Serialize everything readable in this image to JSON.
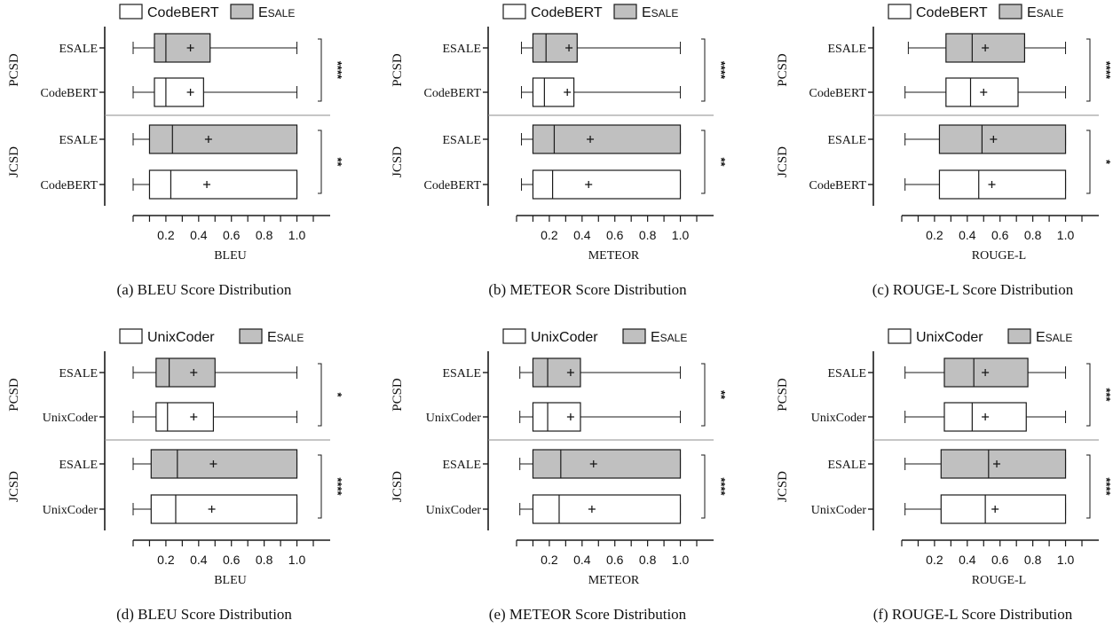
{
  "colors": {
    "baseline_fill": "#ffffff",
    "esale_fill": "#c0c0c0",
    "stroke": "#1a1a1a",
    "divider": "#8c8c8c"
  },
  "chart_data": [
    {
      "type": "box",
      "caption": "(a) BLEU Score Distribution",
      "xlabel": "BLEU",
      "xticks": [
        "0.2",
        "0.4",
        "0.6",
        "0.8",
        "1.0"
      ],
      "xlim": [
        0,
        1.1
      ],
      "legend": [
        {
          "name": "CodeBERT",
          "style": "baseline"
        },
        {
          "name": "ESALE",
          "style": "esale",
          "smallcaps": true
        }
      ],
      "groups": [
        {
          "name": "PCSD",
          "significance": "****",
          "boxes": [
            {
              "label": "ESALE",
              "style": "esale",
              "min": 0.0,
              "q1": 0.13,
              "median": 0.2,
              "q3": 0.47,
              "max": 1.0,
              "mean": 0.35
            },
            {
              "label": "CodeBERT",
              "style": "baseline",
              "min": 0.0,
              "q1": 0.13,
              "median": 0.2,
              "q3": 0.43,
              "max": 1.0,
              "mean": 0.35
            }
          ]
        },
        {
          "name": "JCSD",
          "significance": "**",
          "boxes": [
            {
              "label": "ESALE",
              "style": "esale",
              "min": 0.0,
              "q1": 0.1,
              "median": 0.24,
              "q3": 1.0,
              "max": 1.0,
              "mean": 0.46
            },
            {
              "label": "CodeBERT",
              "style": "baseline",
              "min": 0.0,
              "q1": 0.1,
              "median": 0.23,
              "q3": 1.0,
              "max": 1.0,
              "mean": 0.45
            }
          ]
        }
      ]
    },
    {
      "type": "box",
      "caption": "(b) METEOR Score Distribution",
      "xlabel": "METEOR",
      "xticks": [
        "0.2",
        "0.4",
        "0.6",
        "0.8",
        "1.0"
      ],
      "xlim": [
        0,
        1.1
      ],
      "legend": [
        {
          "name": "CodeBERT",
          "style": "baseline"
        },
        {
          "name": "ESALE",
          "style": "esale",
          "smallcaps": true
        }
      ],
      "groups": [
        {
          "name": "PCSD",
          "significance": "****",
          "boxes": [
            {
              "label": "ESALE",
              "style": "esale",
              "min": 0.03,
              "q1": 0.1,
              "median": 0.18,
              "q3": 0.37,
              "max": 1.0,
              "mean": 0.32
            },
            {
              "label": "CodeBERT",
              "style": "baseline",
              "min": 0.03,
              "q1": 0.1,
              "median": 0.17,
              "q3": 0.35,
              "max": 1.0,
              "mean": 0.31
            }
          ]
        },
        {
          "name": "JCSD",
          "significance": "**",
          "boxes": [
            {
              "label": "ESALE",
              "style": "esale",
              "min": 0.03,
              "q1": 0.1,
              "median": 0.23,
              "q3": 1.0,
              "max": 1.0,
              "mean": 0.45
            },
            {
              "label": "CodeBERT",
              "style": "baseline",
              "min": 0.03,
              "q1": 0.1,
              "median": 0.22,
              "q3": 1.0,
              "max": 1.0,
              "mean": 0.44
            }
          ]
        }
      ]
    },
    {
      "type": "box",
      "caption": "(c) ROUGE-L Score Distribution",
      "xlabel": "ROUGE-L",
      "xticks": [
        "0.2",
        "0.4",
        "0.6",
        "0.8",
        "1.0"
      ],
      "xlim": [
        0,
        1.1
      ],
      "legend": [
        {
          "name": "CodeBERT",
          "style": "baseline"
        },
        {
          "name": "ESALE",
          "style": "esale",
          "smallcaps": true
        }
      ],
      "groups": [
        {
          "name": "PCSD",
          "significance": "****",
          "boxes": [
            {
              "label": "ESALE",
              "style": "esale",
              "min": 0.04,
              "q1": 0.27,
              "median": 0.43,
              "q3": 0.75,
              "max": 1.0,
              "mean": 0.51
            },
            {
              "label": "CodeBERT",
              "style": "baseline",
              "min": 0.02,
              "q1": 0.27,
              "median": 0.42,
              "q3": 0.71,
              "max": 1.0,
              "mean": 0.5
            }
          ]
        },
        {
          "name": "JCSD",
          "significance": "*",
          "boxes": [
            {
              "label": "ESALE",
              "style": "esale",
              "min": 0.02,
              "q1": 0.23,
              "median": 0.49,
              "q3": 1.0,
              "max": 1.0,
              "mean": 0.56
            },
            {
              "label": "CodeBERT",
              "style": "baseline",
              "min": 0.02,
              "q1": 0.23,
              "median": 0.47,
              "q3": 1.0,
              "max": 1.0,
              "mean": 0.55
            }
          ]
        }
      ]
    },
    {
      "type": "box",
      "caption": "(d) BLEU Score Distribution",
      "xlabel": "BLEU",
      "xticks": [
        "0.2",
        "0.4",
        "0.6",
        "0.8",
        "1.0"
      ],
      "xlim": [
        0,
        1.1
      ],
      "legend": [
        {
          "name": "UnixCoder",
          "style": "baseline"
        },
        {
          "name": "ESALE",
          "style": "esale",
          "smallcaps": true
        }
      ],
      "groups": [
        {
          "name": "PCSD",
          "significance": "*",
          "boxes": [
            {
              "label": "ESALE",
              "style": "esale",
              "min": 0.0,
              "q1": 0.14,
              "median": 0.22,
              "q3": 0.5,
              "max": 1.0,
              "mean": 0.37
            },
            {
              "label": "UnixCoder",
              "style": "baseline",
              "min": 0.0,
              "q1": 0.14,
              "median": 0.21,
              "q3": 0.49,
              "max": 1.0,
              "mean": 0.37
            }
          ]
        },
        {
          "name": "JCSD",
          "significance": "****",
          "boxes": [
            {
              "label": "ESALE",
              "style": "esale",
              "min": 0.0,
              "q1": 0.11,
              "median": 0.27,
              "q3": 1.0,
              "max": 1.0,
              "mean": 0.49
            },
            {
              "label": "UnixCoder",
              "style": "baseline",
              "min": 0.0,
              "q1": 0.11,
              "median": 0.26,
              "q3": 1.0,
              "max": 1.0,
              "mean": 0.48
            }
          ]
        }
      ]
    },
    {
      "type": "box",
      "caption": "(e) METEOR Score Distribution",
      "xlabel": "METEOR",
      "xticks": [
        "0.2",
        "0.4",
        "0.6",
        "0.8",
        "1.0"
      ],
      "xlim": [
        0,
        1.1
      ],
      "legend": [
        {
          "name": "UnixCoder",
          "style": "baseline"
        },
        {
          "name": "ESALE",
          "style": "esale",
          "smallcaps": true
        }
      ],
      "groups": [
        {
          "name": "PCSD",
          "significance": "**",
          "boxes": [
            {
              "label": "ESALE",
              "style": "esale",
              "min": 0.02,
              "q1": 0.1,
              "median": 0.19,
              "q3": 0.39,
              "max": 1.0,
              "mean": 0.33
            },
            {
              "label": "UnixCoder",
              "style": "baseline",
              "min": 0.02,
              "q1": 0.1,
              "median": 0.19,
              "q3": 0.39,
              "max": 1.0,
              "mean": 0.33
            }
          ]
        },
        {
          "name": "JCSD",
          "significance": "****",
          "boxes": [
            {
              "label": "ESALE",
              "style": "esale",
              "min": 0.02,
              "q1": 0.1,
              "median": 0.27,
              "q3": 1.0,
              "max": 1.0,
              "mean": 0.47
            },
            {
              "label": "UnixCoder",
              "style": "baseline",
              "min": 0.02,
              "q1": 0.1,
              "median": 0.26,
              "q3": 1.0,
              "max": 1.0,
              "mean": 0.46
            }
          ]
        }
      ]
    },
    {
      "type": "box",
      "caption": "(f) ROUGE-L Score Distribution",
      "xlabel": "ROUGE-L",
      "xticks": [
        "0.2",
        "0.4",
        "0.6",
        "0.8",
        "1.0"
      ],
      "xlim": [
        0,
        1.1
      ],
      "legend": [
        {
          "name": "UnixCoder",
          "style": "baseline"
        },
        {
          "name": "ESALE",
          "style": "esale",
          "smallcaps": true
        }
      ],
      "groups": [
        {
          "name": "PCSD",
          "significance": "***",
          "boxes": [
            {
              "label": "ESALE",
              "style": "esale",
              "min": 0.02,
              "q1": 0.26,
              "median": 0.44,
              "q3": 0.77,
              "max": 1.0,
              "mean": 0.51
            },
            {
              "label": "UnixCoder",
              "style": "baseline",
              "min": 0.02,
              "q1": 0.26,
              "median": 0.43,
              "q3": 0.76,
              "max": 1.0,
              "mean": 0.51
            }
          ]
        },
        {
          "name": "JCSD",
          "significance": "****",
          "boxes": [
            {
              "label": "ESALE",
              "style": "esale",
              "min": 0.02,
              "q1": 0.24,
              "median": 0.53,
              "q3": 1.0,
              "max": 1.0,
              "mean": 0.58
            },
            {
              "label": "UnixCoder",
              "style": "baseline",
              "min": 0.02,
              "q1": 0.24,
              "median": 0.51,
              "q3": 1.0,
              "max": 1.0,
              "mean": 0.57
            }
          ]
        }
      ]
    }
  ]
}
